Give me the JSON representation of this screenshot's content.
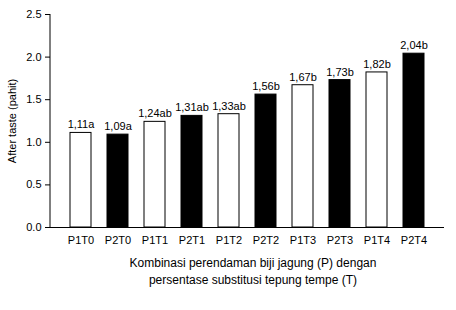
{
  "chart_data": {
    "type": "bar",
    "categories": [
      "P1T0",
      "P2T0",
      "P1T1",
      "P2T1",
      "P1T2",
      "P2T2",
      "P1T3",
      "P2T3",
      "P1T4",
      "P2T4"
    ],
    "values": [
      1.11,
      1.09,
      1.24,
      1.31,
      1.33,
      1.56,
      1.67,
      1.73,
      1.82,
      2.04
    ],
    "value_labels": [
      "1,11a",
      "1,09a",
      "1,24ab",
      "1,31ab",
      "1,33ab",
      "1,56b",
      "1,67b",
      "1,73b",
      "1,82b",
      "2,04b"
    ],
    "colors": [
      "#ffffff",
      "#000000",
      "#ffffff",
      "#000000",
      "#ffffff",
      "#000000",
      "#ffffff",
      "#000000",
      "#ffffff",
      "#000000"
    ],
    "ylim": [
      0,
      2.5
    ],
    "yticks": [
      0,
      0.5,
      1,
      1.5,
      2,
      2.5
    ],
    "y_label": "After taste (pahit)",
    "x_label": "Kombinasi perendaman biji jagung (P) dengan\npersentase substitusi tepung tempe (T)",
    "data_labels": true,
    "grid": false
  }
}
